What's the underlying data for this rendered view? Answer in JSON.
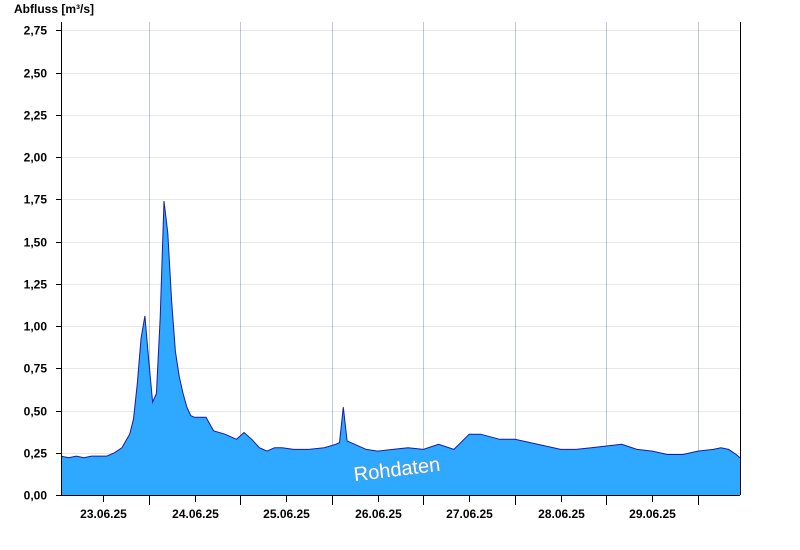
{
  "chart_data": {
    "type": "area",
    "ylabel": "Abfluss [m³/s]",
    "ylim": [
      0,
      2.8
    ],
    "yticks": [
      0,
      0.25,
      0.5,
      0.75,
      1.0,
      1.25,
      1.5,
      1.75,
      2.0,
      2.25,
      2.5,
      2.75
    ],
    "ytick_labels": [
      "0,00",
      "0,25",
      "0,50",
      "0,75",
      "1,00",
      "1,25",
      "1,50",
      "1,75",
      "2,00",
      "2,25",
      "2,50",
      "2,75"
    ],
    "xlim": [
      "22.06.25 13:00",
      "29.06.25 23:00"
    ],
    "xticks": [
      "23.06.25 00:00",
      "24.06.25 00:00",
      "25.06.25 00:00",
      "26.06.25 00:00",
      "27.06.25 00:00",
      "28.06.25 00:00",
      "29.06.25 00:00"
    ],
    "xtick_labels": [
      "23.06.25",
      "24.06.25",
      "25.06.25",
      "26.06.25",
      "27.06.25",
      "28.06.25",
      "29.06.25"
    ],
    "grid": true,
    "fill_color": "#2ea9ff",
    "line_color": "#1a1aa0",
    "annotation": "Rohdaten",
    "series": [
      {
        "x": [
          "22.06.25 13:00",
          "22.06.25 15:00",
          "22.06.25 17:00",
          "22.06.25 19:00",
          "22.06.25 21:00",
          "22.06.25 23:00",
          "23.06.25 01:00",
          "23.06.25 03:00",
          "23.06.25 05:00",
          "23.06.25 06:00",
          "23.06.25 07:00",
          "23.06.25 08:00",
          "23.06.25 09:00",
          "23.06.25 10:00",
          "23.06.25 11:00",
          "23.06.25 12:00",
          "23.06.25 13:00",
          "23.06.25 14:00",
          "23.06.25 15:00",
          "23.06.25 16:00",
          "23.06.25 17:00",
          "23.06.25 18:00",
          "23.06.25 19:00",
          "23.06.25 20:00",
          "23.06.25 21:00",
          "23.06.25 22:00",
          "23.06.25 23:00",
          "24.06.25 00:00",
          "24.06.25 01:00",
          "24.06.25 03:00",
          "24.06.25 05:00",
          "24.06.25 08:00",
          "24.06.25 11:00",
          "24.06.25 13:00",
          "24.06.25 15:00",
          "24.06.25 17:00",
          "24.06.25 19:00",
          "24.06.25 21:00",
          "24.06.25 23:00",
          "25.06.25 02:00",
          "25.06.25 06:00",
          "25.06.25 10:00",
          "25.06.25 13:00",
          "25.06.25 14:00",
          "25.06.25 15:00",
          "25.06.25 16:00",
          "25.06.25 18:00",
          "25.06.25 21:00",
          "26.06.25 00:00",
          "26.06.25 04:00",
          "26.06.25 08:00",
          "26.06.25 12:00",
          "26.06.25 16:00",
          "26.06.25 20:00",
          "27.06.25 00:00",
          "27.06.25 03:00",
          "27.06.25 08:00",
          "27.06.25 12:00",
          "27.06.25 16:00",
          "27.06.25 20:00",
          "28.06.25 00:00",
          "28.06.25 04:00",
          "28.06.25 08:00",
          "28.06.25 12:00",
          "28.06.25 16:00",
          "28.06.25 20:00",
          "29.06.25 00:00",
          "29.06.25 04:00",
          "29.06.25 08:00",
          "29.06.25 12:00",
          "29.06.25 16:00",
          "29.06.25 18:00",
          "29.06.25 20:00",
          "29.06.25 22:00",
          "29.06.25 23:00"
        ],
        "y": [
          0.23,
          0.22,
          0.23,
          0.22,
          0.23,
          0.23,
          0.23,
          0.25,
          0.28,
          0.32,
          0.36,
          0.45,
          0.66,
          0.93,
          1.06,
          0.8,
          0.55,
          0.6,
          1.05,
          1.74,
          1.55,
          1.15,
          0.85,
          0.7,
          0.6,
          0.52,
          0.47,
          0.46,
          0.46,
          0.46,
          0.38,
          0.36,
          0.33,
          0.37,
          0.33,
          0.28,
          0.26,
          0.28,
          0.28,
          0.27,
          0.27,
          0.28,
          0.3,
          0.31,
          0.52,
          0.32,
          0.3,
          0.27,
          0.26,
          0.27,
          0.28,
          0.27,
          0.3,
          0.27,
          0.36,
          0.36,
          0.33,
          0.33,
          0.31,
          0.29,
          0.27,
          0.27,
          0.28,
          0.29,
          0.3,
          0.27,
          0.26,
          0.24,
          0.24,
          0.26,
          0.27,
          0.28,
          0.27,
          0.24,
          0.22
        ]
      }
    ]
  }
}
